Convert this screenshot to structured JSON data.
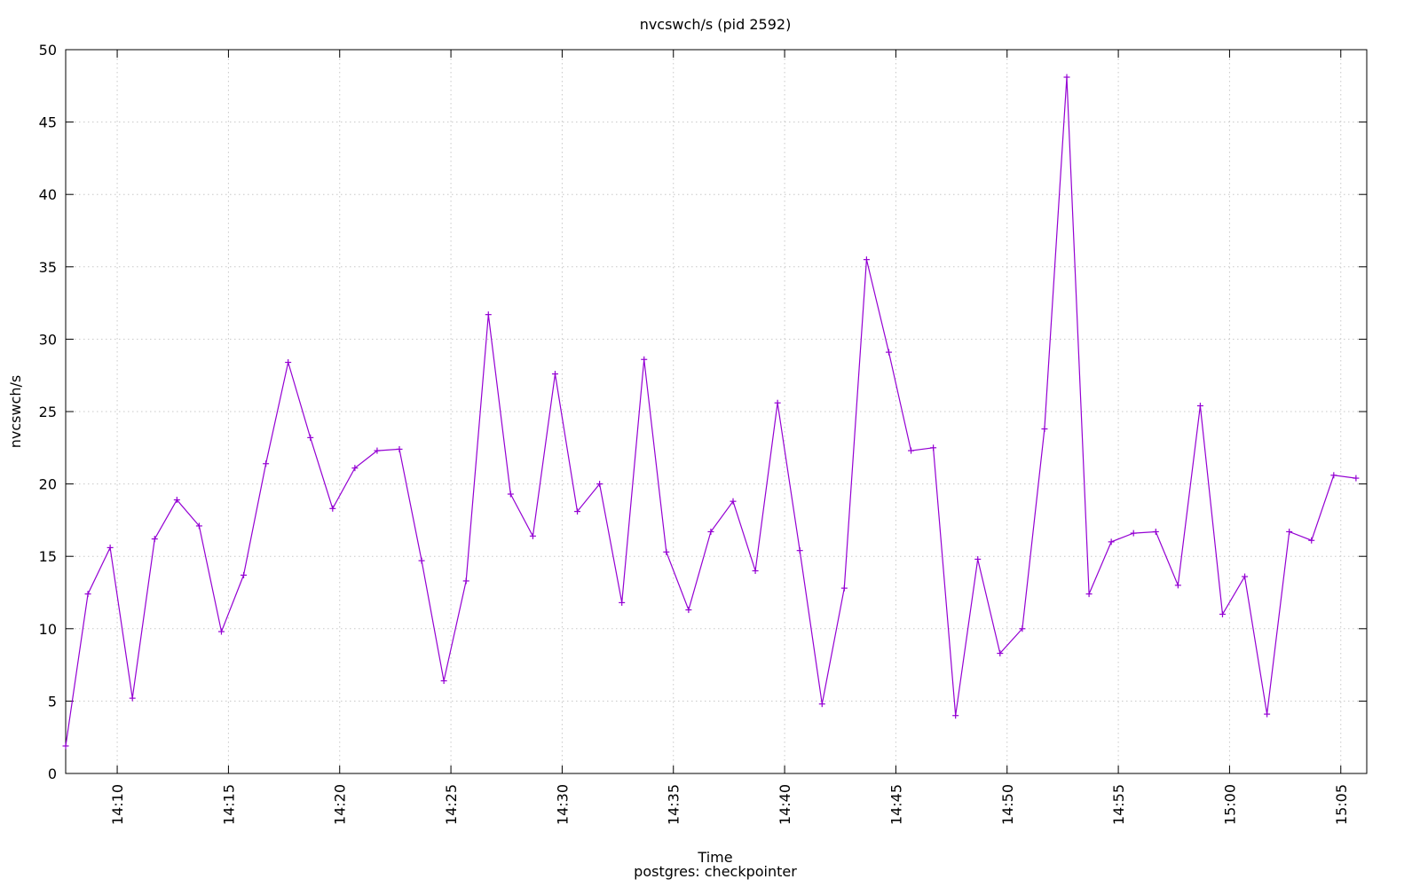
{
  "chart_data": {
    "type": "line",
    "title": "nvcswch/s (pid 2592)",
    "xlabel": "Time",
    "ylabel": "nvcswch/s",
    "subtitle": "postgres: checkpointer",
    "xlim": [
      "14:07:41",
      "15:06:10"
    ],
    "ylim": [
      0,
      50
    ],
    "yticks": [
      0,
      5,
      10,
      15,
      20,
      25,
      30,
      35,
      40,
      45,
      50
    ],
    "xticks": [
      "14:10",
      "14:15",
      "14:20",
      "14:25",
      "14:30",
      "14:35",
      "14:40",
      "14:45",
      "14:50",
      "14:55",
      "15:00",
      "15:05"
    ],
    "grid": true,
    "legend": "none",
    "series_color": "#9400d3",
    "series": [
      {
        "x": [
          "14:07:41",
          "14:08:41",
          "14:09:41",
          "14:10:41",
          "14:11:41",
          "14:12:41",
          "14:13:41",
          "14:14:41",
          "14:15:41",
          "14:16:41",
          "14:17:41",
          "14:18:41",
          "14:19:41",
          "14:20:41",
          "14:21:41",
          "14:22:41",
          "14:23:41",
          "14:24:41",
          "14:25:41",
          "14:26:41",
          "14:27:41",
          "14:28:41",
          "14:29:41",
          "14:30:41",
          "14:31:41",
          "14:32:41",
          "14:33:41",
          "14:34:41",
          "14:35:41",
          "14:36:41",
          "14:37:41",
          "14:38:41",
          "14:39:41",
          "14:40:41",
          "14:41:41",
          "14:42:41",
          "14:43:41",
          "14:44:41",
          "14:45:41",
          "14:46:41",
          "14:47:41",
          "14:48:41",
          "14:49:41",
          "14:50:41",
          "14:51:41",
          "14:52:41",
          "14:53:41",
          "14:54:41",
          "14:55:41",
          "14:56:41",
          "14:57:41",
          "14:58:41",
          "14:59:41",
          "15:00:41",
          "15:01:41",
          "15:02:41",
          "15:03:41",
          "15:04:41",
          "15:05:41"
        ],
        "values": [
          1.9,
          12.4,
          15.6,
          5.2,
          16.2,
          18.9,
          17.1,
          9.8,
          13.7,
          21.4,
          28.4,
          23.2,
          18.3,
          21.1,
          22.3,
          22.4,
          14.7,
          6.4,
          13.3,
          31.7,
          19.3,
          16.4,
          27.6,
          18.1,
          20.0,
          11.8,
          28.6,
          15.3,
          11.3,
          16.7,
          18.8,
          14.0,
          25.6,
          15.4,
          4.8,
          12.8,
          35.5,
          29.1,
          22.3,
          22.5,
          4.0,
          14.8,
          8.3,
          10.0,
          23.8,
          48.1,
          12.4,
          16.0,
          16.6,
          16.7,
          13.0,
          25.4,
          11.0,
          13.6,
          4.1,
          16.7,
          16.1,
          20.6,
          20.4
        ]
      }
    ]
  }
}
